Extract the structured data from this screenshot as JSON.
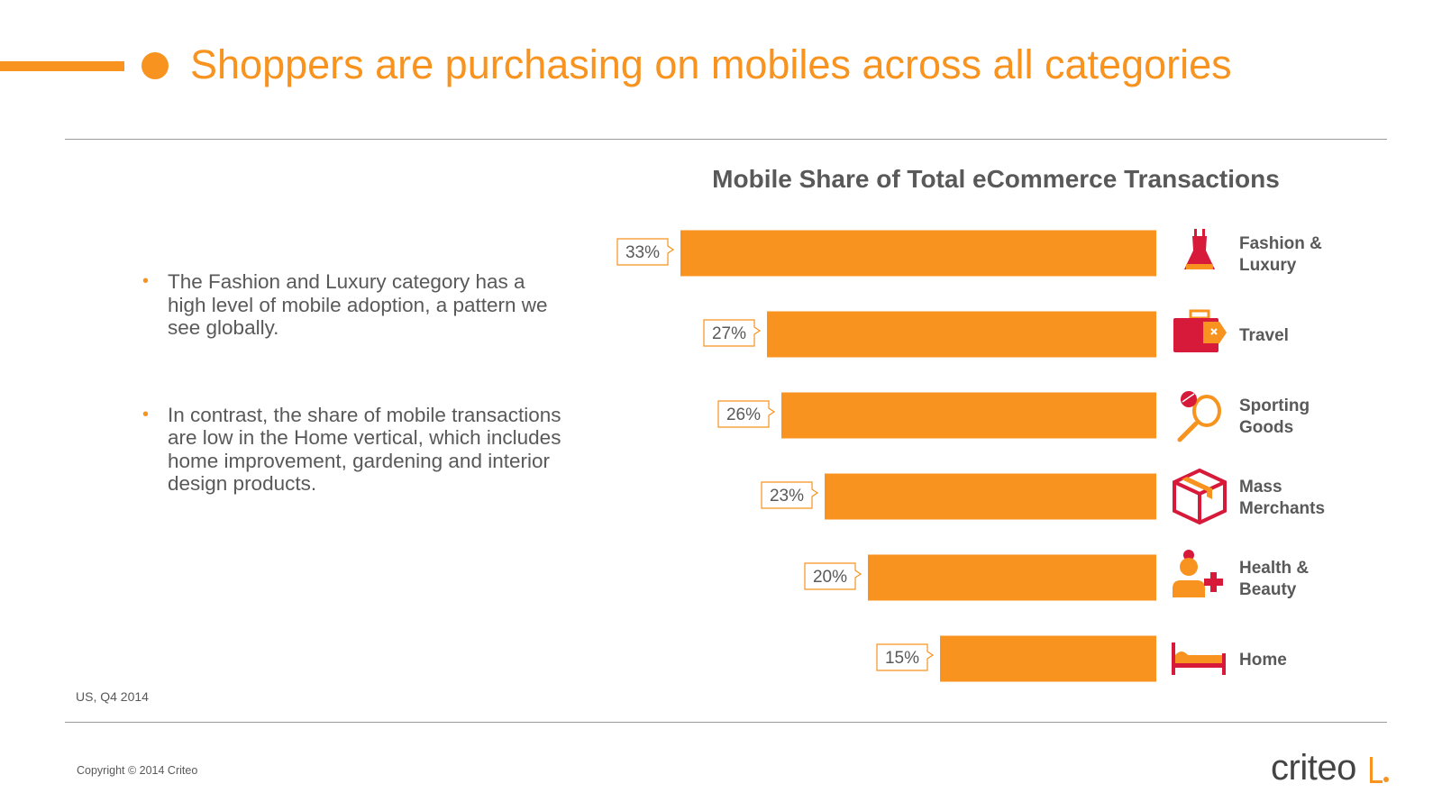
{
  "header": {
    "title": "Shoppers are purchasing on mobiles across all categories"
  },
  "bullets": [
    "The Fashion and Luxury category has a high level of mobile adoption, a pattern we see globally.",
    "In contrast, the share of mobile transactions are low in the Home vertical, which includes home improvement, gardening and interior design products."
  ],
  "source_note": "US, Q4 2014",
  "footer": {
    "copyright": "Copyright © 2014 Criteo",
    "logo_text": "criteo"
  },
  "colors": {
    "accent": "#f7931e",
    "icon": "#d7193a",
    "text": "#595959",
    "rule": "#999999"
  },
  "chart_data": {
    "type": "bar",
    "orientation": "horizontal",
    "title": "Mobile Share of Total eCommerce Transactions",
    "categories": [
      {
        "lines": [
          "Fashion &",
          "Luxury"
        ],
        "icon": "dress-icon"
      },
      {
        "lines": [
          "Travel"
        ],
        "icon": "suitcase-icon"
      },
      {
        "lines": [
          "Sporting",
          "Goods"
        ],
        "icon": "racket-ball-icon"
      },
      {
        "lines": [
          "Mass",
          "Merchants"
        ],
        "icon": "package-box-icon"
      },
      {
        "lines": [
          "Health &",
          "Beauty"
        ],
        "icon": "person-plus-icon"
      },
      {
        "lines": [
          "Home"
        ],
        "icon": "bed-icon"
      }
    ],
    "values": [
      33,
      27,
      26,
      23,
      20,
      15
    ],
    "value_labels": [
      "33%",
      "27%",
      "26%",
      "23%",
      "20%",
      "15%"
    ],
    "unit": "%",
    "bar_direction": "right-aligned",
    "grid": false,
    "legend": "none"
  }
}
